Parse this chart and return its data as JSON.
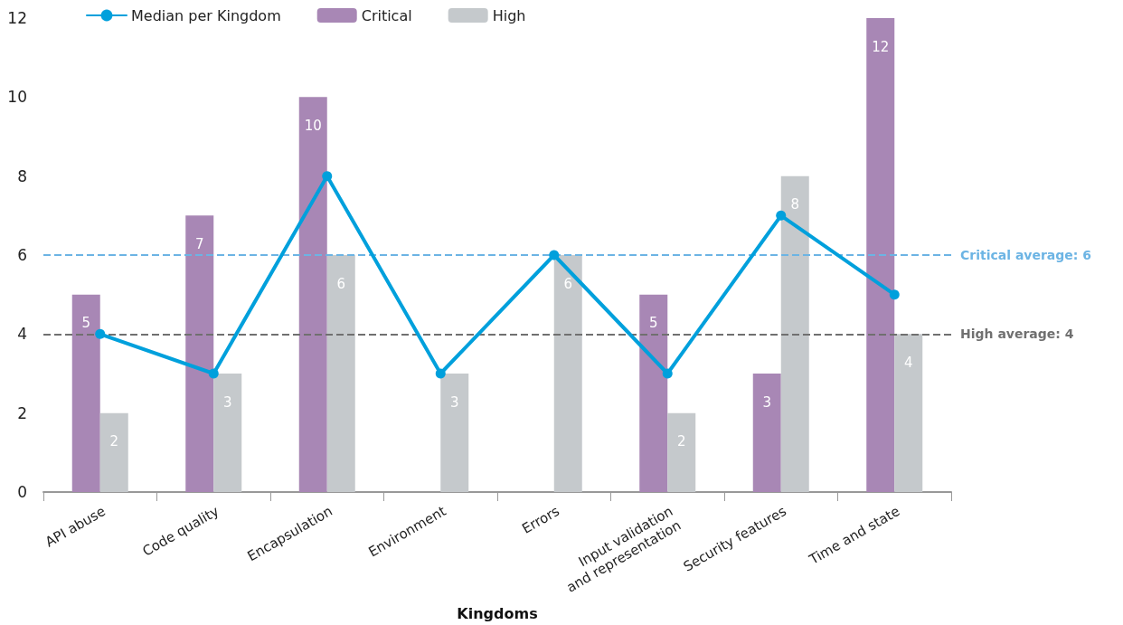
{
  "chart_data": {
    "type": "bar",
    "xlabel": "Kingdoms",
    "categories": [
      "API abuse",
      "Code quality",
      "Encapsulation",
      "Environment",
      "Errors",
      "Input validation\nand representation",
      "Security features",
      "Time and state"
    ],
    "series": [
      {
        "name": "Median per Kingdom",
        "type": "line",
        "color": "#00a0dc",
        "values": [
          4,
          3,
          8,
          3,
          6,
          3,
          7,
          5
        ]
      },
      {
        "name": "Critical",
        "color": "#a887b5",
        "values": [
          5,
          7,
          10,
          null,
          null,
          5,
          3,
          12
        ],
        "value_labels": [
          "5",
          "7",
          "10",
          null,
          null,
          "5",
          "3",
          "12"
        ]
      },
      {
        "name": "High",
        "color": "#c5c9cc",
        "values": [
          2,
          3,
          6,
          3,
          6,
          2,
          8,
          4
        ],
        "value_labels": [
          "2",
          "3",
          "6",
          "3",
          "6",
          "2",
          "8",
          "4"
        ]
      }
    ],
    "ylim": [
      0,
      12
    ],
    "yticks": [
      0,
      2,
      4,
      6,
      8,
      10,
      12
    ],
    "grid": false,
    "legend": "top left",
    "marker": "circle",
    "line_style": "solid",
    "ref_lines": [
      {
        "axis": "y",
        "value": 6,
        "label": "Critical average: 6",
        "color": "#6cb4e4",
        "line_style": "dashed"
      },
      {
        "axis": "y",
        "value": 4,
        "label": "High average: 4",
        "color": "#707070",
        "line_style": "dashed"
      }
    ]
  }
}
